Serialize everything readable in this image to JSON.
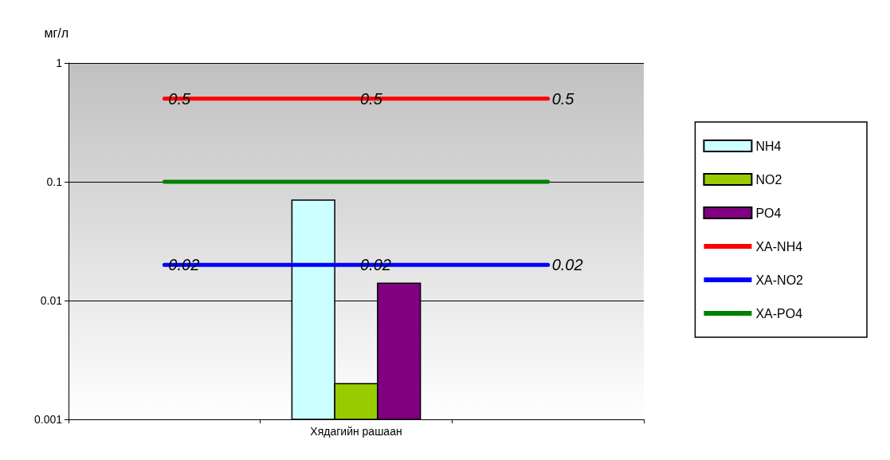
{
  "chart_data": {
    "type": "bar",
    "ylabel": "мг/л",
    "categories": [
      null,
      "Хядагийн рашаан",
      null
    ],
    "series": [
      {
        "name": "NH4",
        "color": "#ccffff",
        "values": [
          null,
          0.07,
          null
        ]
      },
      {
        "name": "NO2",
        "color": "#99cc00",
        "values": [
          null,
          0.002,
          null
        ]
      },
      {
        "name": "PO4",
        "color": "#800080",
        "values": [
          null,
          0.014,
          null
        ]
      },
      {
        "name": "XA-NH4",
        "type": "line",
        "color": "#ff0000",
        "values": [
          0.5,
          0.5,
          0.5
        ],
        "value_labels": [
          "0.5",
          "0.5",
          "0.5"
        ]
      },
      {
        "name": "XA-NO2",
        "type": "line",
        "color": "#0000ff",
        "values": [
          0.02,
          0.02,
          0.02
        ],
        "value_labels": [
          "0.02",
          "0.02",
          "0.02"
        ]
      },
      {
        "name": "XA-PO4",
        "type": "line",
        "color": "#008000",
        "values": [
          0.1,
          0.1,
          0.1
        ]
      }
    ],
    "log": "y",
    "ylim": [
      0.001,
      1
    ],
    "yticks": [
      0.001,
      0.01,
      0.1,
      1
    ],
    "grid": "y",
    "legend": "right",
    "marker": "none"
  }
}
